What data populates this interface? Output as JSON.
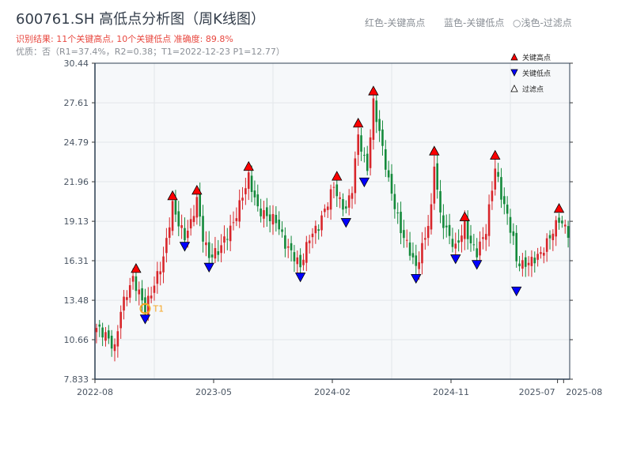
{
  "header": {
    "title": "600761.SH 高低点分析图（周K线图）",
    "result_line": "识别结果: 11个关键高点, 10个关键低点   准确度: 89.8%",
    "quality_line": "优质：否（R1=37.4%，R2=0.38；T1=2022-12-23 P1=12.77）",
    "color_legend": [
      "红色-关键高点",
      "蓝色-关键低点",
      "○浅色-过滤点"
    ]
  },
  "chart_data": {
    "type": "candlestick",
    "title": "600761.SH 高低点分析图（周K线图）",
    "ylim": [
      7.833,
      30.44
    ],
    "yticks": [
      "7.833",
      "10.66",
      "13.48",
      "16.31",
      "19.13",
      "21.96",
      "24.79",
      "27.61",
      "30.44"
    ],
    "xticks": [
      {
        "label": "2022-08",
        "index": 0
      },
      {
        "label": "2023-05",
        "index": 39
      },
      {
        "label": "2024-02",
        "index": 78
      },
      {
        "label": "2024-11",
        "index": 117
      },
      {
        "label": "2025-07",
        "index": 152
      },
      {
        "label": "2025-08",
        "index": 154
      }
    ],
    "n_weeks": 156,
    "close_anchors": [
      [
        0,
        11.5
      ],
      [
        3,
        11.0
      ],
      [
        6,
        10.0
      ],
      [
        8,
        12.8
      ],
      [
        10,
        14.0
      ],
      [
        12,
        15.0
      ],
      [
        14,
        14.0
      ],
      [
        16,
        12.9
      ],
      [
        18,
        14.0
      ],
      [
        22,
        16.5
      ],
      [
        25,
        20.3
      ],
      [
        27,
        19.0
      ],
      [
        29,
        18.0
      ],
      [
        31,
        19.0
      ],
      [
        33,
        20.7
      ],
      [
        35,
        18.0
      ],
      [
        37,
        16.6
      ],
      [
        40,
        17.0
      ],
      [
        42,
        17.8
      ],
      [
        45,
        19.0
      ],
      [
        47,
        20.3
      ],
      [
        50,
        22.3
      ],
      [
        53,
        20.0
      ],
      [
        56,
        19.5
      ],
      [
        59,
        19.2
      ],
      [
        62,
        17.5
      ],
      [
        65,
        16.6
      ],
      [
        67,
        15.9
      ],
      [
        70,
        18.0
      ],
      [
        73,
        18.8
      ],
      [
        76,
        20.5
      ],
      [
        78,
        21.7
      ],
      [
        80,
        20.5
      ],
      [
        82,
        20.0
      ],
      [
        84,
        21.5
      ],
      [
        86,
        25.3
      ],
      [
        88,
        23.5
      ],
      [
        89,
        22.9
      ],
      [
        91,
        27.6
      ],
      [
        93,
        25.5
      ],
      [
        96,
        22.0
      ],
      [
        100,
        18.5
      ],
      [
        103,
        17.0
      ],
      [
        105,
        15.8
      ],
      [
        108,
        18.0
      ],
      [
        110,
        20.0
      ],
      [
        111,
        23.3
      ],
      [
        113,
        19.5
      ],
      [
        116,
        18.0
      ],
      [
        118,
        17.2
      ],
      [
        121,
        18.8
      ],
      [
        123,
        17.5
      ],
      [
        125,
        16.9
      ],
      [
        128,
        18.5
      ],
      [
        131,
        23.0
      ],
      [
        133,
        21.0
      ],
      [
        135,
        19.5
      ],
      [
        137,
        17.8
      ],
      [
        138,
        16.3
      ],
      [
        140,
        16.0
      ],
      [
        143,
        16.3
      ],
      [
        146,
        16.8
      ],
      [
        149,
        18.0
      ],
      [
        152,
        19.3
      ],
      [
        155,
        18.3
      ]
    ],
    "key_highs": [
      {
        "index": 13,
        "price": 15.3
      },
      {
        "index": 25,
        "price": 20.5
      },
      {
        "index": 33,
        "price": 20.9
      },
      {
        "index": 50,
        "price": 22.6
      },
      {
        "index": 79,
        "price": 21.9
      },
      {
        "index": 86,
        "price": 25.7
      },
      {
        "index": 91,
        "price": 28.0
      },
      {
        "index": 111,
        "price": 23.7
      },
      {
        "index": 121,
        "price": 19.0
      },
      {
        "index": 131,
        "price": 23.4
      },
      {
        "index": 152,
        "price": 19.6
      }
    ],
    "key_lows": [
      {
        "index": 16,
        "price": 12.6
      },
      {
        "index": 29,
        "price": 17.8
      },
      {
        "index": 37,
        "price": 16.3
      },
      {
        "index": 67,
        "price": 15.6
      },
      {
        "index": 82,
        "price": 19.5
      },
      {
        "index": 88,
        "price": 22.4
      },
      {
        "index": 105,
        "price": 15.5
      },
      {
        "index": 118,
        "price": 16.9
      },
      {
        "index": 125,
        "price": 16.5
      },
      {
        "index": 138,
        "price": 14.6
      }
    ],
    "annotation": {
      "label": "T1",
      "index": 16,
      "price": 12.77
    },
    "legend": [
      "关键高点",
      "关键低点",
      "过滤点"
    ],
    "legend_placement": "top-right",
    "colors": {
      "up": "#d8262b",
      "down": "#148a3b",
      "high": "#ff0000",
      "low": "#0000ff",
      "annot": "#f5a623"
    }
  }
}
